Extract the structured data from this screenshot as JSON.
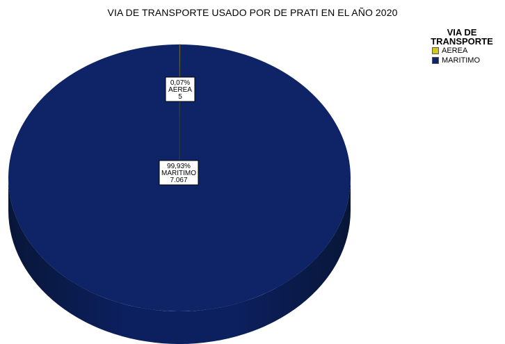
{
  "chart_data": {
    "type": "pie",
    "title": "VIA DE TRANSPORTE USADO POR DE PRATI EN EL AÑO 2020",
    "legend_title": "VIA DE TRANSPORTE",
    "legend_title_lines": [
      "VIA DE",
      "TRANSPORTE"
    ],
    "legend_position": "top-right",
    "three_d": true,
    "slices": [
      {
        "label": "AEREA",
        "value": 5,
        "percent_text": "0,07%",
        "value_text": "5",
        "color": "#d4c81e"
      },
      {
        "label": "MARITIMO",
        "value": 7067,
        "percent_text": "99,93%",
        "value_text": "7.067",
        "color": "#0e2466"
      }
    ]
  }
}
